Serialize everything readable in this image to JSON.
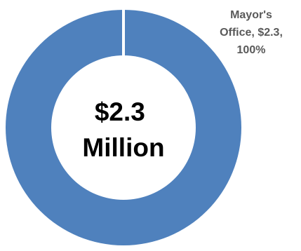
{
  "chart_data": {
    "type": "pie",
    "variant": "donut",
    "slices": [
      {
        "label_lines": [
          "Mayor's",
          "Office, $2.3,",
          "100%"
        ],
        "category": "Mayor's Office",
        "value": 2.3,
        "percent": 100,
        "color": "#4f81bd"
      }
    ],
    "center_label_lines": [
      "$2.3",
      "Million"
    ],
    "legend": "none",
    "slice_gap_color": "#ffffff"
  }
}
